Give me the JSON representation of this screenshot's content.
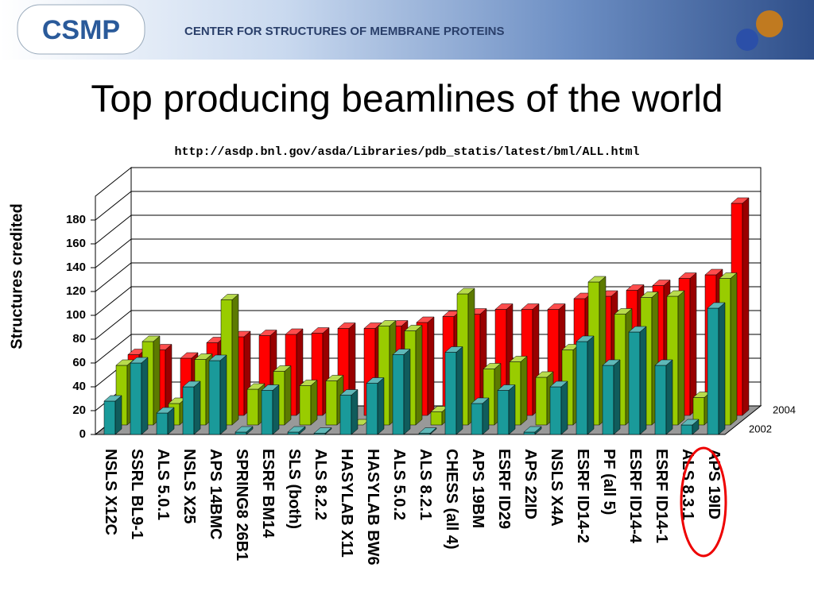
{
  "header": {
    "logo": "CSMP",
    "org": "CENTER FOR STRUCTURES OF MEMBRANE PROTEINS"
  },
  "chart_data": {
    "type": "bar3d",
    "title": "Top producing beamlines of the world",
    "subtitle": "http://asdp.bnl.gov/asda/Libraries/pdb_statis/latest/bml/ALL.html",
    "y_label": "Structures credited",
    "categories": [
      "NSLS X12C",
      "SSRL BL9-1",
      "ALS 5.0.1",
      "NSLS X25",
      "APS 14BMC",
      "SPRING8 26B1",
      "ESRF BM14",
      "SLS (both)",
      "ALS 8.2.2",
      "HASYLAB X11",
      "HASYLAB BW6",
      "ALS 5.0.2",
      "ALS 8.2.1",
      "CHESS (all 4)",
      "APS 19BM",
      "ESRF ID29",
      "APS 22ID",
      "NSLS X4A",
      "ESRF ID14-2",
      "PF (all 5)",
      "ESRF ID14-4",
      "ESRF ID14-1",
      "ALS 8.3.1",
      "APS 19ID"
    ],
    "series": [
      {
        "name": "2002",
        "color": "#1a9a9a",
        "values": [
          28,
          60,
          18,
          40,
          62,
          2,
          37,
          2,
          1,
          33,
          43,
          67,
          1,
          69,
          26,
          37,
          2,
          40,
          78,
          58,
          86,
          58,
          8,
          106
        ]
      },
      {
        "color": "#99cc00",
        "values": [
          50,
          70,
          18,
          55,
          105,
          30,
          45,
          33,
          37,
          0,
          83,
          79,
          11,
          110,
          47,
          53,
          40,
          63,
          120,
          93,
          107,
          108,
          23,
          123
        ]
      },
      {
        "name": "2004",
        "color": "#ff0000",
        "values": [
          51,
          55,
          48,
          61,
          66,
          67,
          68,
          69,
          73,
          73,
          75,
          78,
          83,
          85,
          89,
          89,
          89,
          98,
          100,
          105,
          109,
          115,
          118,
          178
        ]
      }
    ],
    "ylim": [
      0,
      200
    ],
    "yticks": [
      0,
      20,
      40,
      60,
      80,
      100,
      120,
      140,
      160,
      180
    ],
    "grid": true
  }
}
